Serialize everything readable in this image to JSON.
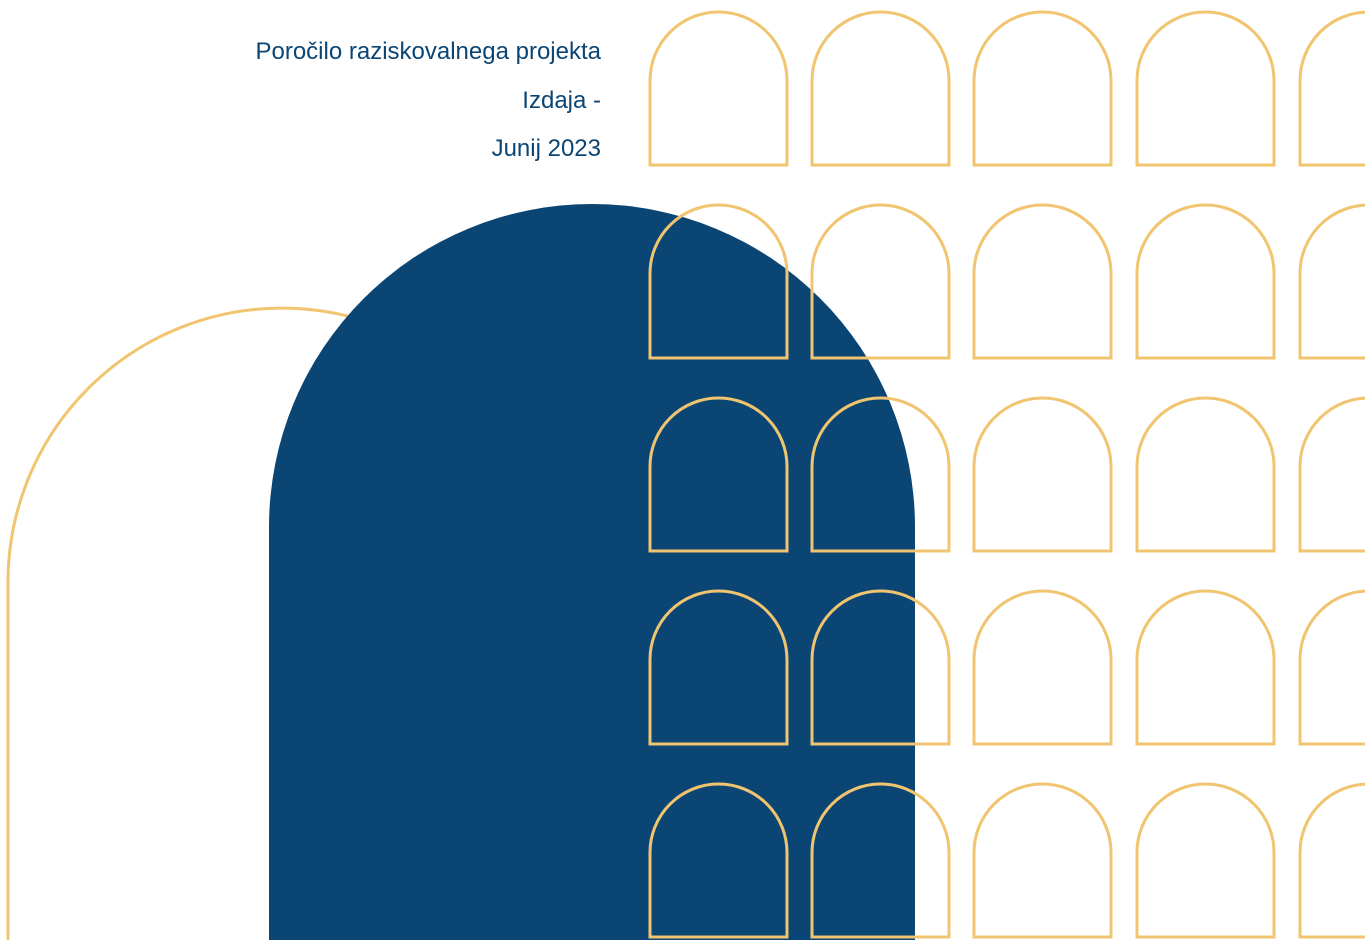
{
  "cover": {
    "report_title": "Poročilo raziskovalnega projekta",
    "edition": "Izdaja -",
    "date": "Junij 2023"
  },
  "colors": {
    "text": "#0b4574",
    "navy_shape": "#0b4574",
    "arch_outline": "#f1c46f",
    "background": "#ffffff"
  }
}
